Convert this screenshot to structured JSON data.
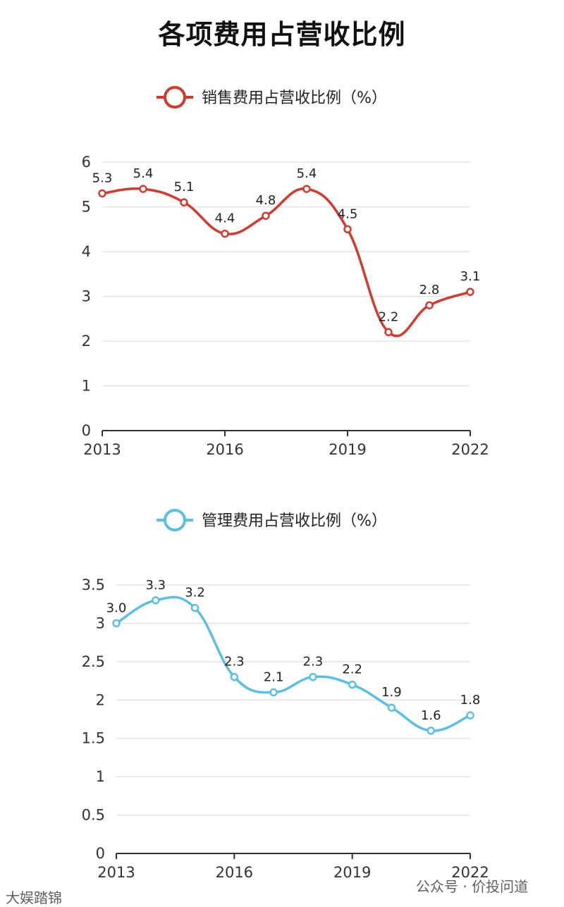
{
  "title": "各项费用占营收比例",
  "watermark_left": "大娱踏锦",
  "watermark_right": "公众号 · 价投问道",
  "chart_data": [
    {
      "type": "line",
      "legend": "销售费用占营收比例（%）",
      "color": "#d23a2e",
      "categories": [
        "2013",
        "2014",
        "2015",
        "2016",
        "2017",
        "2018",
        "2019",
        "2020",
        "2021",
        "2022"
      ],
      "values": [
        5.3,
        5.4,
        5.1,
        4.4,
        4.8,
        5.4,
        4.5,
        2.2,
        2.8,
        3.1
      ],
      "value_labels": [
        "5.3",
        "5.4",
        "5.1",
        "4.4",
        "4.8",
        "5.4",
        "4.5",
        "2.2",
        "2.8",
        "3.1"
      ],
      "x_tick_labels": [
        "2013",
        "2016",
        "2019",
        "2022"
      ],
      "y_ticks": [
        0,
        1,
        2,
        3,
        4,
        5,
        6
      ],
      "y_tick_labels": [
        "0",
        "1",
        "2",
        "3",
        "4",
        "5",
        "6"
      ],
      "ylim": [
        0,
        6
      ],
      "grid": true
    },
    {
      "type": "line",
      "legend": "管理费用占营收比例（%）",
      "color": "#5bbfe3",
      "categories": [
        "2013",
        "2014",
        "2015",
        "2016",
        "2017",
        "2018",
        "2019",
        "2020",
        "2021",
        "2022"
      ],
      "values": [
        3.0,
        3.3,
        3.2,
        2.3,
        2.1,
        2.3,
        2.2,
        1.9,
        1.6,
        1.8
      ],
      "value_labels": [
        "3.0",
        "3.3",
        "3.2",
        "2.3",
        "2.1",
        "2.3",
        "2.2",
        "1.9",
        "1.6",
        "1.8"
      ],
      "x_tick_labels": [
        "2013",
        "2016",
        "2019",
        "2022"
      ],
      "y_ticks": [
        0,
        0.5,
        1,
        1.5,
        2,
        2.5,
        3,
        3.5
      ],
      "y_tick_labels": [
        "0",
        "0.5",
        "1",
        "1.5",
        "2",
        "2.5",
        "3",
        "3.5"
      ],
      "ylim": [
        0,
        3.5
      ],
      "grid": true
    }
  ]
}
